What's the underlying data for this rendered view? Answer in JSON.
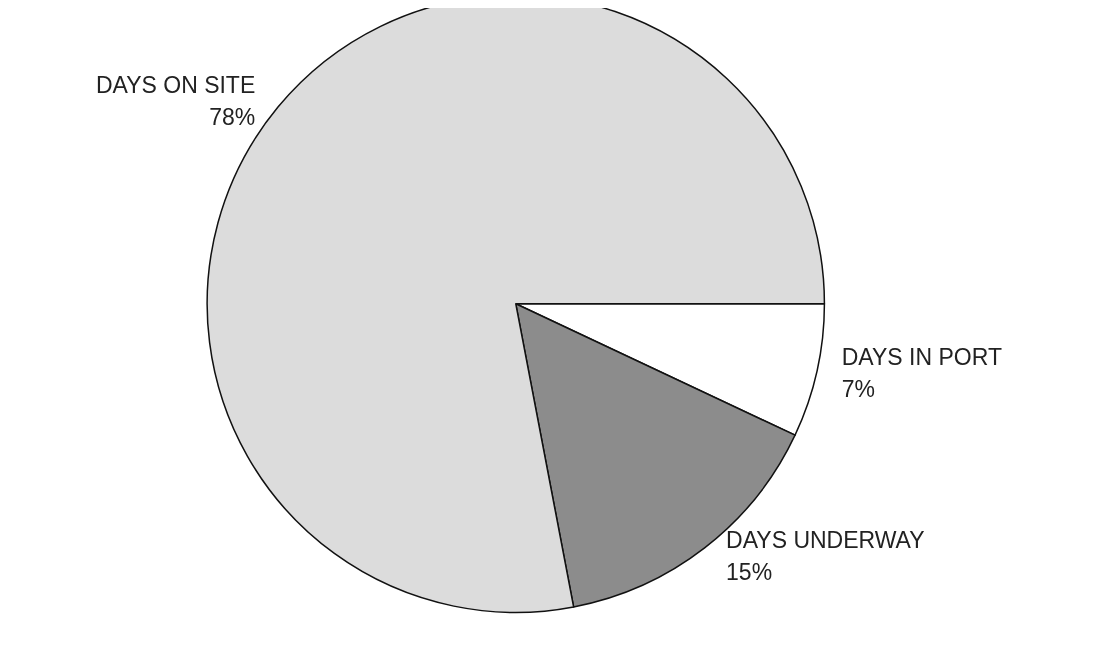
{
  "chart_data": {
    "type": "pie",
    "categories": [
      "DAYS IN PORT",
      "DAYS UNDERWAY",
      "DAYS ON SITE"
    ],
    "values": [
      7,
      15,
      78
    ],
    "value_labels": [
      "7%",
      "15%",
      "78%"
    ],
    "colors": [
      "#ffffff",
      "#8c8c8c",
      "#dcdcdc"
    ]
  }
}
